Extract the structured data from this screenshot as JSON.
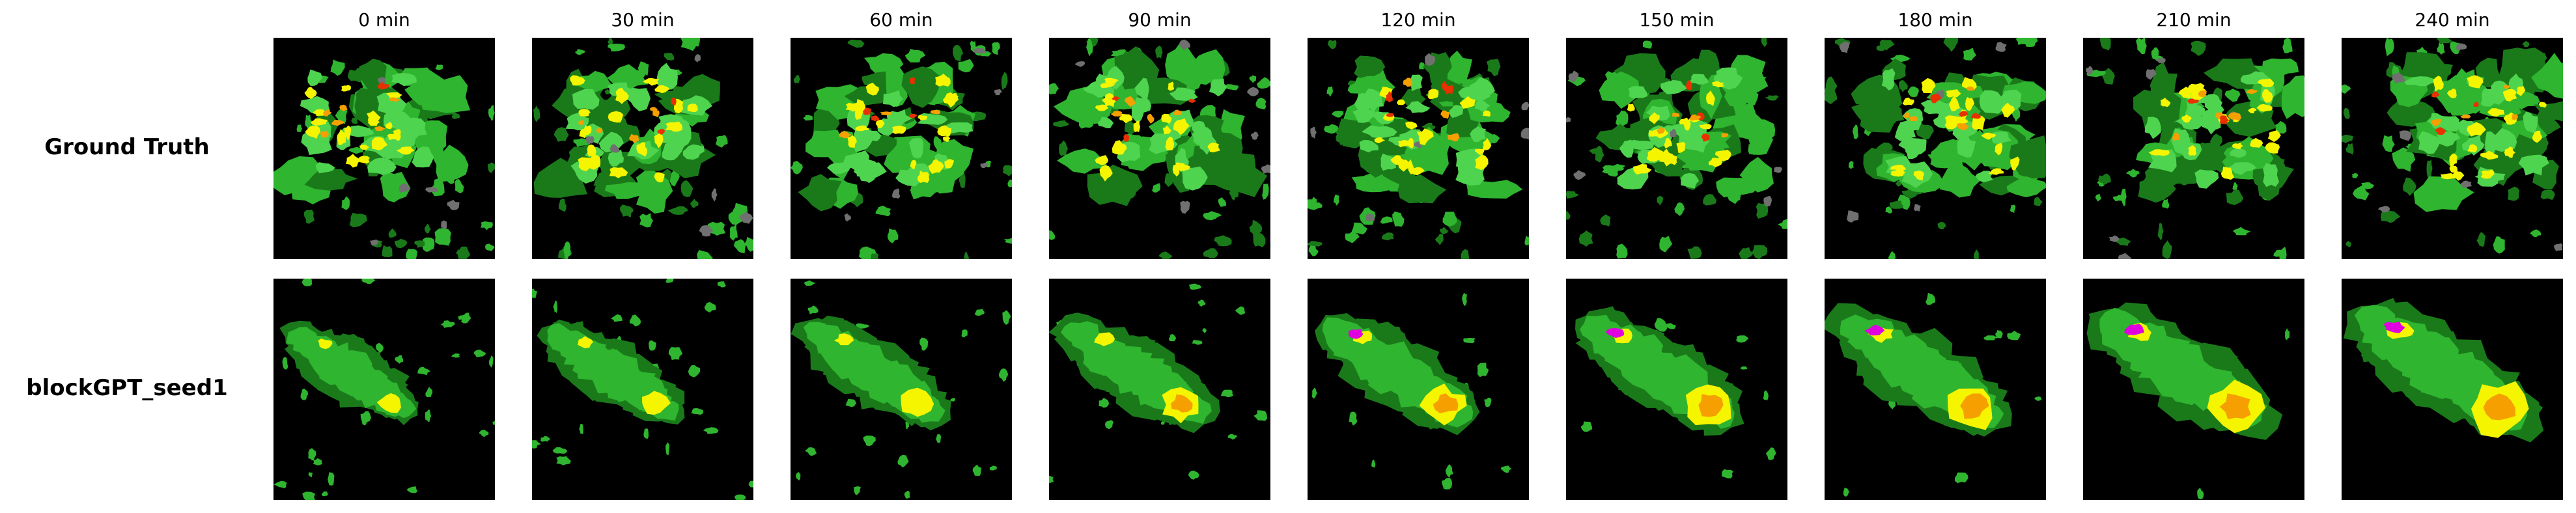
{
  "columns": [
    "0 min",
    "30 min",
    "60 min",
    "90 min",
    "120 min",
    "150 min",
    "180 min",
    "210 min",
    "240 min"
  ],
  "rows": [
    {
      "label": "Ground Truth"
    },
    {
      "label": "blockGPT_seed1"
    }
  ],
  "colors": {
    "background": "#000000",
    "dark_green": "#1a7a1a",
    "green": "#2fb52f",
    "light_green": "#4fd44f",
    "yellow": "#f5f500",
    "orange": "#f5a000",
    "red": "#e83000",
    "magenta": "#e000e0",
    "gray": "#707070"
  }
}
